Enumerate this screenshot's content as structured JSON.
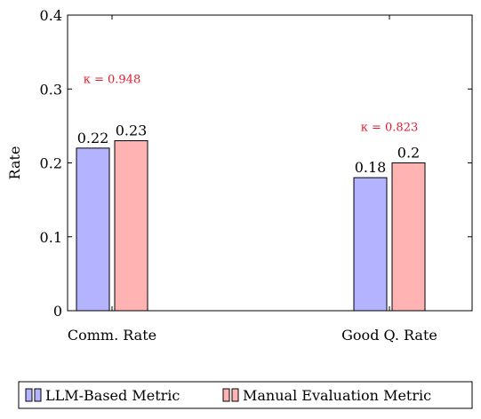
{
  "chart_data": {
    "type": "bar",
    "categories": [
      "Comm. Rate",
      "Good Q. Rate"
    ],
    "series": [
      {
        "name": "LLM-Based Metric",
        "values": [
          0.22,
          0.18
        ],
        "color": "#b3b3ff",
        "stroke": "#000000"
      },
      {
        "name": "Manual Evaluation Metric",
        "values": [
          0.23,
          0.2
        ],
        "color": "#ffb3b3",
        "stroke": "#000000"
      }
    ],
    "data_labels": [
      [
        "0.22",
        "0.18"
      ],
      [
        "0.23",
        "0.2"
      ]
    ],
    "ylabel": "Rate",
    "xlabel": "",
    "ylim": [
      0,
      0.4
    ],
    "yticks": [
      0,
      0.1,
      0.2,
      0.3,
      0.4
    ],
    "ytick_labels": [
      "0",
      "0.1",
      "0.2",
      "0.3",
      "0.4"
    ],
    "annotations": [
      {
        "text": "κ = 0.948",
        "category_index": 0,
        "y": 0.308,
        "color": "#e8192c"
      },
      {
        "text": "κ = 0.823",
        "category_index": 1,
        "y": 0.243,
        "color": "#e8192c"
      }
    ],
    "legend_position": "bottom",
    "grid": false
  }
}
